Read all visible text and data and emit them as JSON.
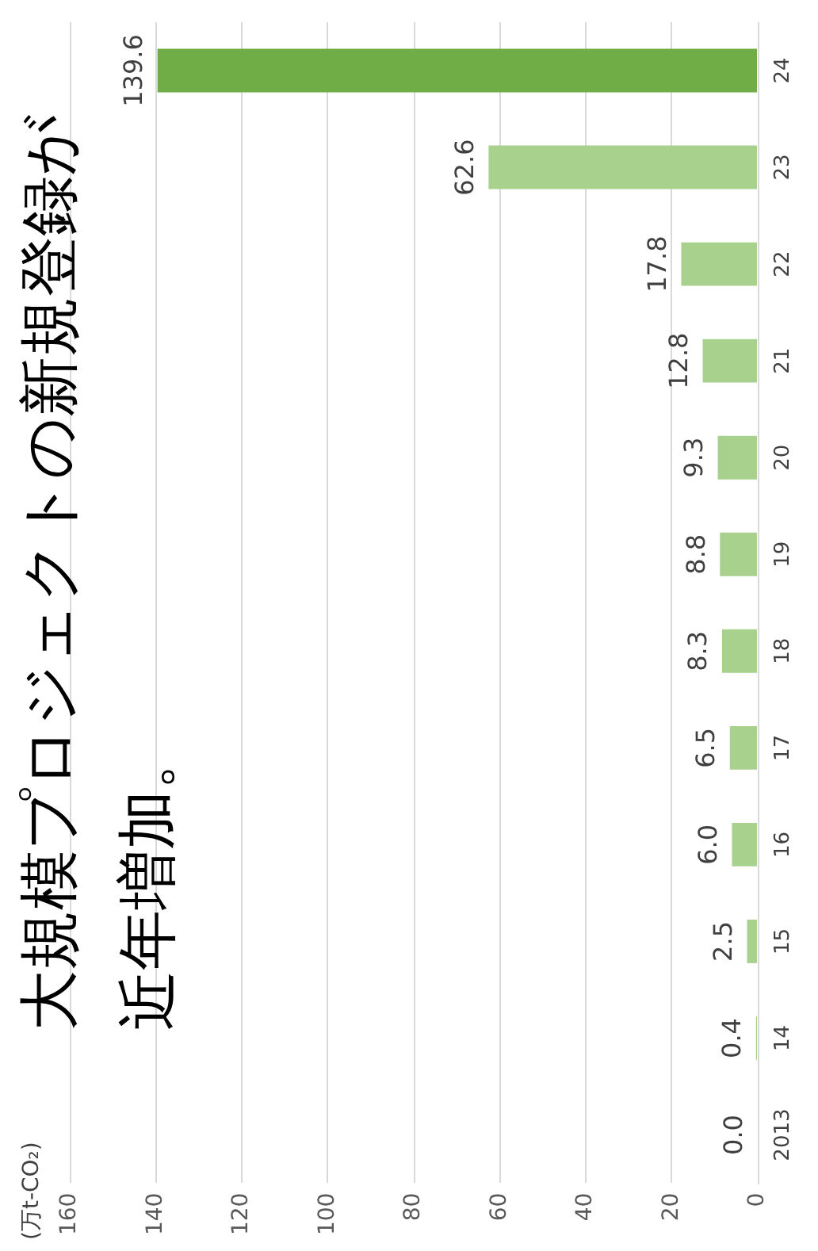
{
  "chart_data": {
    "type": "bar",
    "orientation": "horizontal",
    "title": "大規模プロジェクトの新規登録が近年増加。",
    "annotations": [
      "(万t-CO₂)"
    ],
    "categories": [
      "24",
      "23",
      "22",
      "21",
      "20",
      "19",
      "18",
      "17",
      "16",
      "15",
      "14",
      "2013"
    ],
    "values": [
      139.6,
      62.6,
      17.8,
      12.8,
      9.3,
      8.8,
      8.3,
      6.5,
      6.0,
      2.5,
      0.4,
      0.0
    ],
    "value_labels": [
      "139.6",
      "62.6",
      "17.8",
      "12.8",
      "9.3",
      "8.8",
      "8.3",
      "6.5",
      "6.0",
      "2.5",
      "0.4",
      "0.0"
    ],
    "colors": [
      "#70ad47",
      "#a9d18e",
      "#a9d18e",
      "#a9d18e",
      "#a9d18e",
      "#a9d18e",
      "#a9d18e",
      "#a9d18e",
      "#a9d18e",
      "#a9d18e",
      "#a9d18e",
      "#a9d18e"
    ],
    "xlim": [
      160,
      0
    ],
    "xticks": [
      0,
      20,
      40,
      60,
      80,
      100,
      120,
      140,
      160
    ],
    "grid": "x",
    "legend": false
  }
}
